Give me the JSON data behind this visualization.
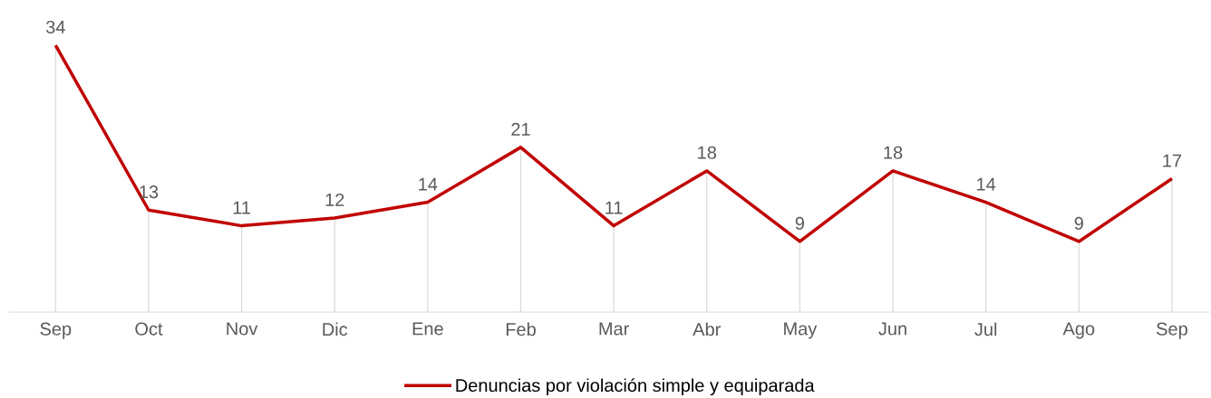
{
  "chart_data": {
    "type": "line",
    "categories": [
      "Sep",
      "Oct",
      "Nov",
      "Dic",
      "Ene",
      "Feb",
      "Mar",
      "Abr",
      "May",
      "Jun",
      "Jul",
      "Ago",
      "Sep"
    ],
    "series": [
      {
        "name": "Denuncias por violación simple y equiparada",
        "color": "#c00000",
        "values": [
          34,
          13,
          11,
          12,
          14,
          21,
          11,
          18,
          9,
          18,
          14,
          9,
          17
        ]
      }
    ],
    "data_labels": true,
    "legend": "bottom",
    "tick_labels": "x",
    "grid": "x",
    "marker": "none",
    "line_style": "solid"
  }
}
